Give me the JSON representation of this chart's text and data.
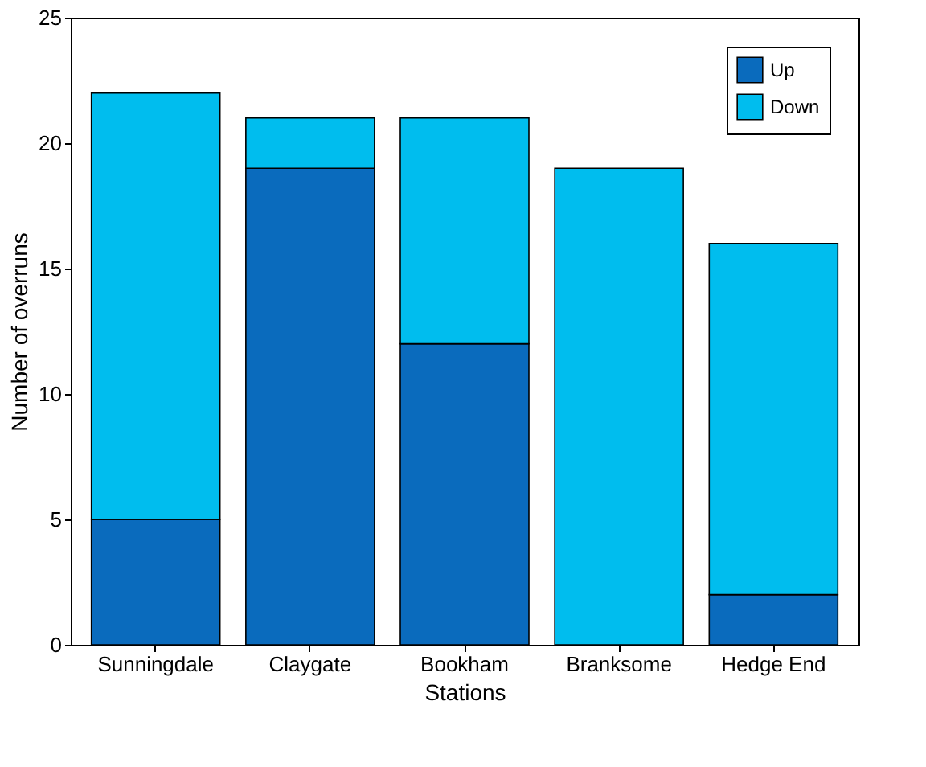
{
  "chart_data": {
    "type": "bar",
    "stacked": true,
    "xlabel": "Stations",
    "ylabel": "Number of overruns",
    "categories": [
      "Sunningdale",
      "Claygate",
      "Bookham",
      "Branksome",
      "Hedge End"
    ],
    "series": [
      {
        "name": "Up",
        "color": "#0a6bbd",
        "values": [
          5,
          19,
          12,
          0,
          2
        ]
      },
      {
        "name": "Down",
        "color": "#00bdee",
        "values": [
          17,
          2,
          9,
          19,
          14
        ]
      }
    ],
    "ylim": [
      0,
      25
    ],
    "yticks": [
      0,
      5,
      10,
      15,
      20,
      25
    ],
    "grid": false,
    "legend": "top right"
  }
}
